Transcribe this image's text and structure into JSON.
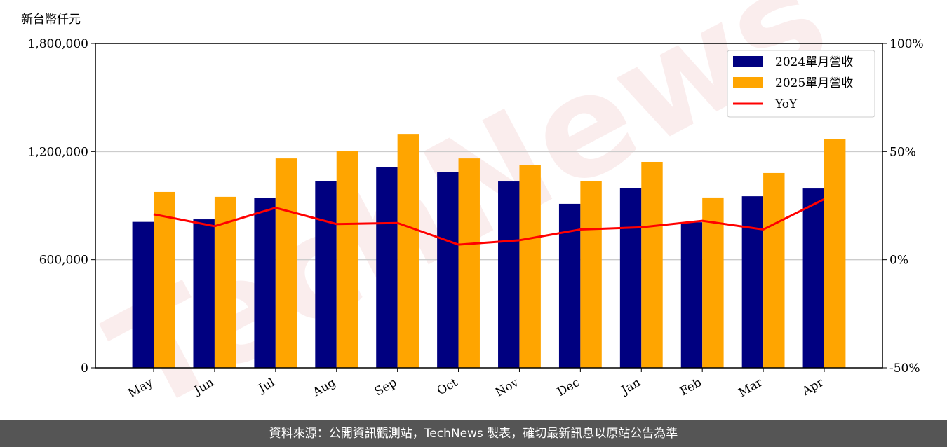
{
  "chart_data": {
    "type": "bar",
    "ylabel": "新台幣仟元",
    "watermark": "TechNews",
    "categories": [
      "May",
      "Jun",
      "Jul",
      "Aug",
      "Sep",
      "Oct",
      "Nov",
      "Dec",
      "Jan",
      "Feb",
      "Mar",
      "Apr"
    ],
    "series": [
      {
        "name": "2024單月營收",
        "color": "#000080",
        "values": [
          810000,
          824000,
          941000,
          1038000,
          1112000,
          1088000,
          1034000,
          910000,
          999000,
          808000,
          952000,
          995000
        ]
      },
      {
        "name": "2025單月營收",
        "color": "#ffa500",
        "values": [
          976000,
          949000,
          1162000,
          1205000,
          1298000,
          1162000,
          1127000,
          1038000,
          1143000,
          945000,
          1081000,
          1271000
        ]
      },
      {
        "name": "YoY",
        "color": "#ff0000",
        "type": "line",
        "axis": "y2",
        "values": [
          21,
          15.5,
          24,
          16.5,
          17,
          7,
          9,
          14,
          15,
          18,
          14,
          28
        ]
      }
    ],
    "ylim": [
      0,
      1800000
    ],
    "yticks": [
      0,
      {
        "value": 600000,
        "label": "600,000"
      },
      {
        "value": 1200000,
        "label": "1,200,000"
      },
      {
        "value": 1800000,
        "label": "1,800,000"
      }
    ],
    "y2lim": [
      -50,
      100
    ],
    "y2ticks": [
      {
        "value": -50,
        "label": "-50%"
      },
      {
        "value": 0,
        "label": "0%"
      },
      {
        "value": 50,
        "label": "50%"
      },
      {
        "value": 100,
        "label": "100%"
      }
    ],
    "grid": true,
    "legend": "upper right",
    "footer": "資料來源：公開資訊觀測站，TechNews 製表，確切最新訊息以原站公告為準"
  }
}
